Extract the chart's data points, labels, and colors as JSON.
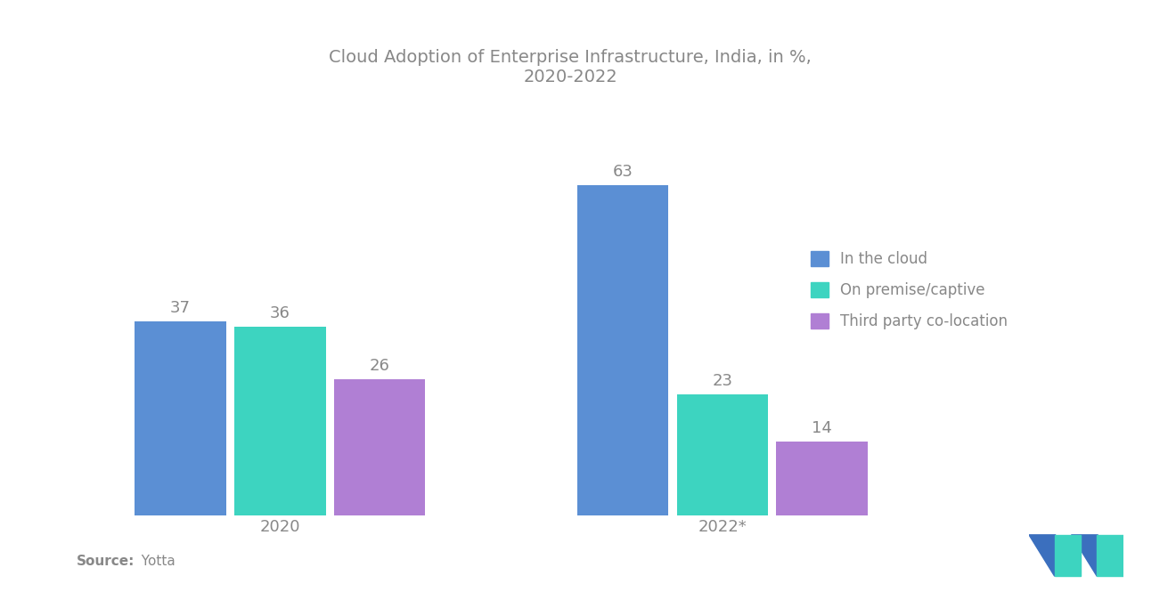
{
  "title": "Cloud Adoption of Enterprise Infrastructure, India, in %,\n2020-2022",
  "title_fontsize": 14,
  "title_color": "#888888",
  "groups": [
    "2020",
    "2022*"
  ],
  "categories": [
    "In the cloud",
    "On premise/captive",
    "Third party co-location"
  ],
  "values": {
    "2020": [
      37,
      36,
      26
    ],
    "2022*": [
      63,
      23,
      14
    ]
  },
  "bar_colors": [
    "#5B8FD4",
    "#3DD4C0",
    "#B07FD4"
  ],
  "bar_width": 0.18,
  "background_color": "#FFFFFF",
  "label_color": "#888888",
  "label_fontsize": 13,
  "legend_fontsize": 12,
  "source_bold": "Source:",
  "source_normal": "  Yotta",
  "source_fontsize": 11,
  "xlabel_fontsize": 13,
  "xlabel_color": "#888888",
  "ylim": [
    0,
    78
  ],
  "group_centers": [
    0.3,
    1.1
  ],
  "xlim": [
    -0.1,
    1.75
  ]
}
